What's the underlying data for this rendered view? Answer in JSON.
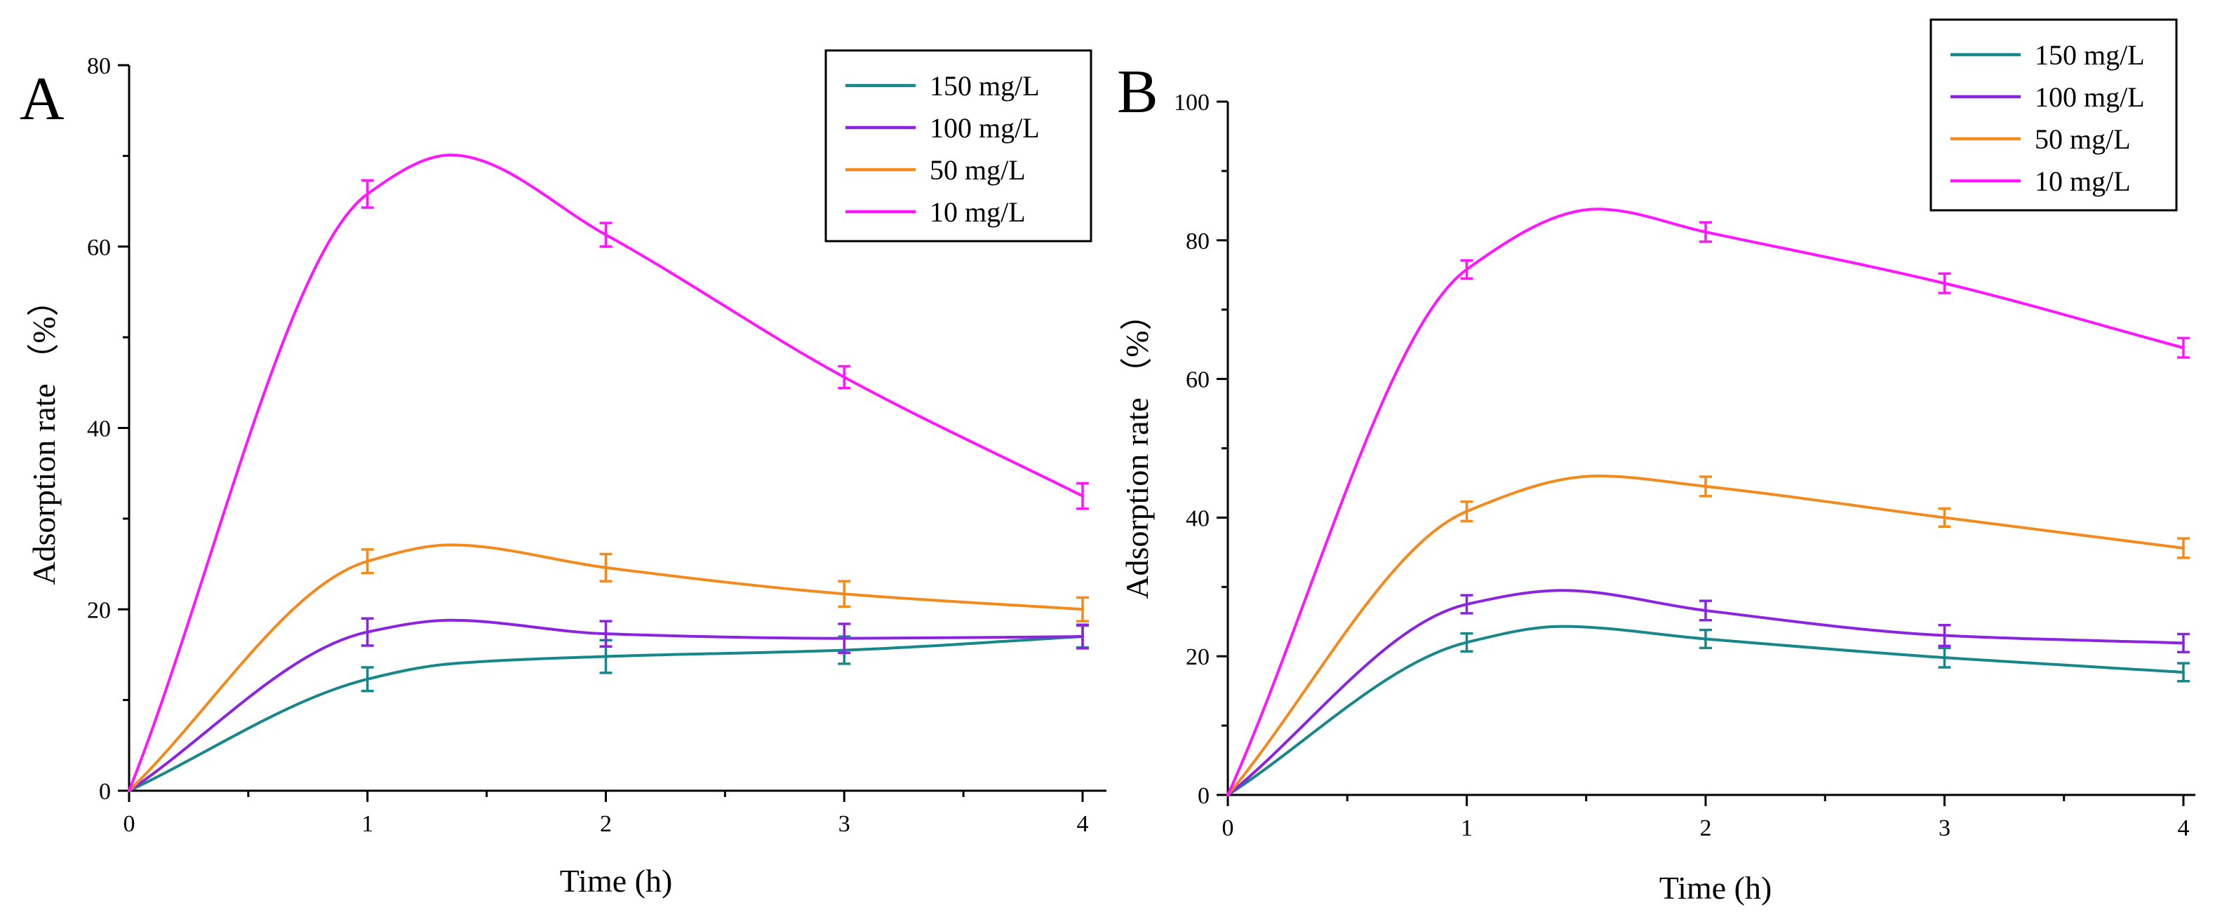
{
  "series_colors": {
    "150 mg/L": "#17878a",
    "100 mg/L": "#8b24df",
    "50 mg/L": "#f28a1e",
    "10 mg/L": "#ff16ff"
  },
  "chart_data": [
    {
      "type": "line",
      "panel_label": "A",
      "title": "",
      "xlabel": "Time (h)",
      "ylabel": "Adsorption rate （%）",
      "x": [
        0,
        1,
        2,
        3,
        4
      ],
      "xlim": [
        0,
        4.1
      ],
      "ylim": [
        0,
        80
      ],
      "xticks": [
        0,
        1,
        2,
        3,
        4
      ],
      "yticks": [
        0,
        20,
        40,
        60,
        80
      ],
      "legend_position": "top-right",
      "series": [
        {
          "name": "150 mg/L",
          "color": "#17878a",
          "values": [
            0,
            12.3,
            14.8,
            15.5,
            17.0
          ],
          "errors": [
            0,
            1.3,
            1.8,
            1.5,
            1.2
          ]
        },
        {
          "name": "100 mg/L",
          "color": "#8b24df",
          "values": [
            0,
            17.5,
            17.3,
            16.8,
            17.0
          ],
          "errors": [
            0,
            1.5,
            1.4,
            1.6,
            1.3
          ]
        },
        {
          "name": "50 mg/L",
          "color": "#f28a1e",
          "values": [
            0,
            25.3,
            24.6,
            21.7,
            20.0
          ],
          "errors": [
            0,
            1.3,
            1.5,
            1.4,
            1.3
          ]
        },
        {
          "name": "10 mg/L",
          "color": "#ff16ff",
          "values": [
            0,
            65.8,
            61.3,
            45.6,
            32.5
          ],
          "errors": [
            0,
            1.5,
            1.3,
            1.2,
            1.4
          ]
        }
      ],
      "peaks": [
        {
          "name": "150 mg/L",
          "x": 1.35,
          "y": 14.0
        },
        {
          "name": "100 mg/L",
          "x": 1.35,
          "y": 18.8
        },
        {
          "name": "50 mg/L",
          "x": 1.35,
          "y": 27.1
        },
        {
          "name": "10 mg/L",
          "x": 1.35,
          "y": 70.1
        }
      ]
    },
    {
      "type": "line",
      "panel_label": "B",
      "title": "",
      "xlabel": "Time (h)",
      "ylabel": "Adsorption rate （%）",
      "x": [
        0,
        1,
        2,
        3,
        4
      ],
      "xlim": [
        0,
        4.05
      ],
      "ylim": [
        0,
        100
      ],
      "xticks": [
        0,
        1,
        2,
        3,
        4
      ],
      "yticks": [
        0,
        20,
        40,
        60,
        80,
        100
      ],
      "legend_position": "top-right",
      "series": [
        {
          "name": "150 mg/L",
          "color": "#17878a",
          "values": [
            0,
            22.0,
            22.5,
            19.8,
            17.7
          ],
          "errors": [
            0,
            1.3,
            1.3,
            1.4,
            1.3
          ]
        },
        {
          "name": "100 mg/L",
          "color": "#8b24df",
          "values": [
            0,
            27.5,
            26.6,
            23.0,
            21.9
          ],
          "errors": [
            0,
            1.3,
            1.4,
            1.5,
            1.3
          ]
        },
        {
          "name": "50 mg/L",
          "color": "#f28a1e",
          "values": [
            0,
            40.9,
            44.5,
            40.0,
            35.6
          ],
          "errors": [
            0,
            1.4,
            1.4,
            1.3,
            1.4
          ]
        },
        {
          "name": "10 mg/L",
          "color": "#ff16ff",
          "values": [
            0,
            75.8,
            81.2,
            73.8,
            64.5
          ],
          "errors": [
            0,
            1.3,
            1.4,
            1.4,
            1.4
          ]
        }
      ],
      "peaks": [
        {
          "name": "150 mg/L",
          "x": 1.4,
          "y": 24.3
        },
        {
          "name": "100 mg/L",
          "x": 1.4,
          "y": 29.5
        },
        {
          "name": "50 mg/L",
          "x": 1.55,
          "y": 46.0
        },
        {
          "name": "10 mg/L",
          "x": 1.55,
          "y": 84.5
        }
      ]
    }
  ]
}
